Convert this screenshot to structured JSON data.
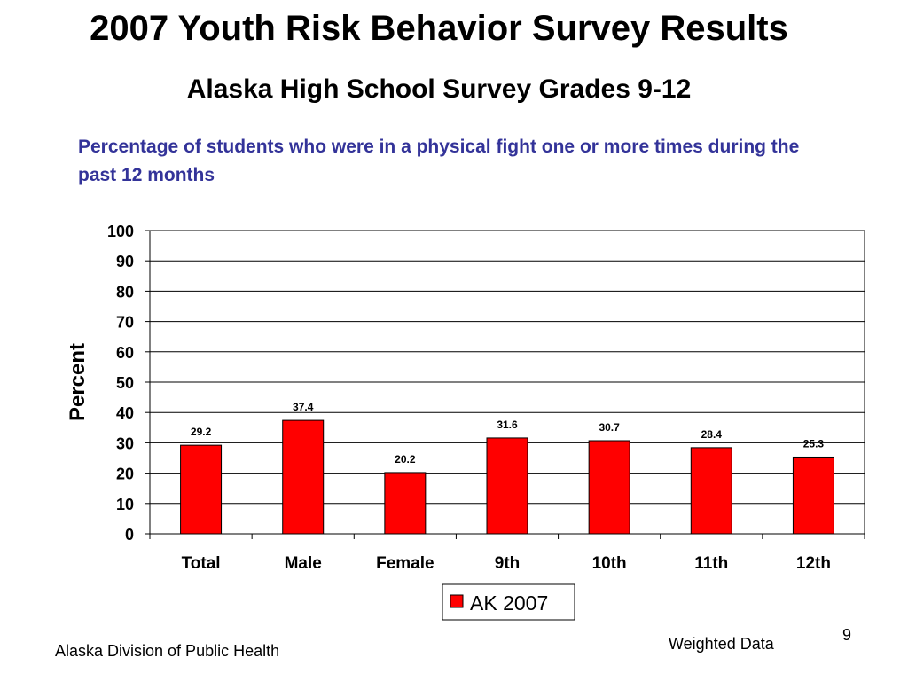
{
  "slide": {
    "title": "2007 Youth Risk Behavior Survey Results",
    "subtitle": "Alaska High School Survey Grades 9-12",
    "footer_left": "Alaska Division of Public Health",
    "footer_right": "Weighted Data",
    "page_number": "9"
  },
  "chart_data": {
    "type": "bar",
    "title": "Percentage of students who were in a physical fight one or more times during the past 12 months",
    "ylabel": "Percent",
    "xlabel": "",
    "categories": [
      "Total",
      "Male",
      "Female",
      "9th",
      "10th",
      "11th",
      "12th"
    ],
    "series": [
      {
        "name": "AK 2007",
        "values": [
          29.2,
          37.4,
          20.2,
          31.6,
          30.7,
          28.4,
          25.3
        ],
        "color": "#ff0000"
      }
    ],
    "data_labels": [
      "29.2",
      "37.4",
      "20.2",
      "31.6",
      "30.7",
      "28.4",
      "25.3"
    ],
    "ylim": [
      0,
      100
    ],
    "yticks": [
      0,
      10,
      20,
      30,
      40,
      50,
      60,
      70,
      80,
      90,
      100
    ],
    "grid": true,
    "legend": "bottom-center"
  }
}
